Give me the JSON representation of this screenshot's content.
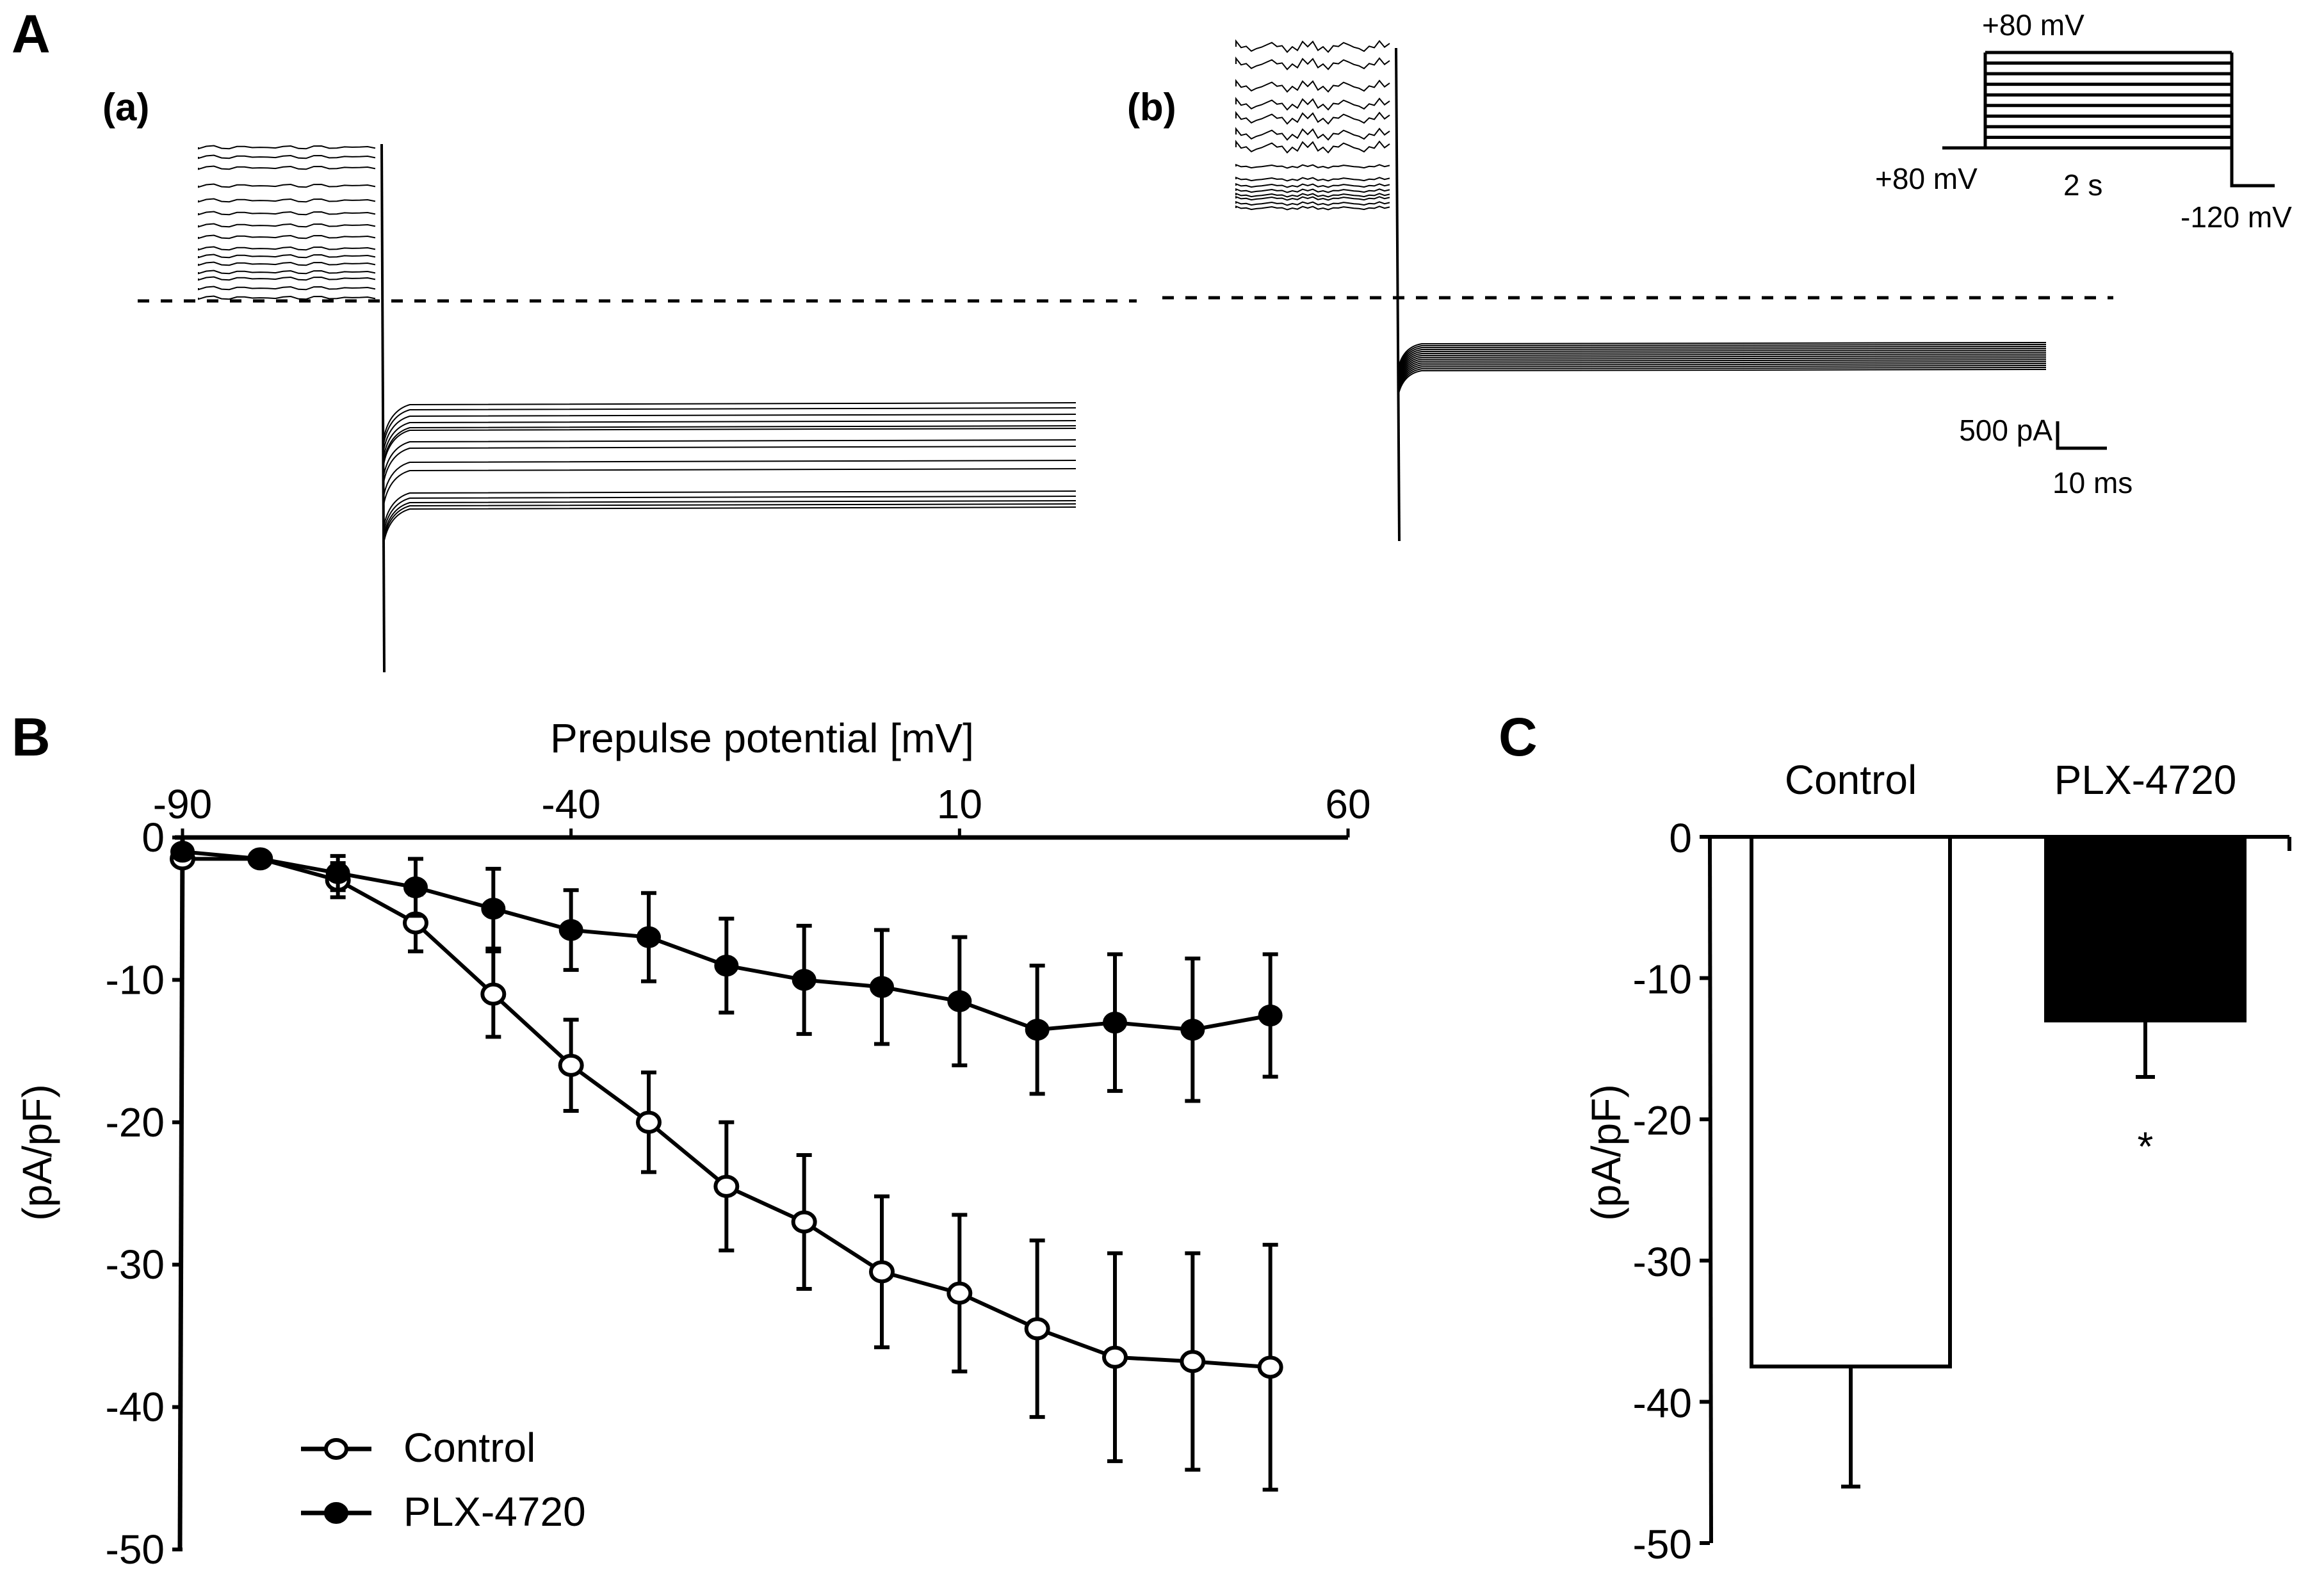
{
  "figure": {
    "panel_labels": [
      "A",
      "B",
      "C"
    ],
    "panel_a": {
      "sub_labels": [
        "(a)",
        "(b)"
      ],
      "protocol": {
        "top_label": "+80 mV",
        "hold_label": "+80 mV",
        "duration_label": "2 s",
        "end_label": "-120 mV",
        "steps": 9
      },
      "scale_bar": {
        "current": "500 pA",
        "time": "10 ms"
      },
      "traces_a_count": 15,
      "traces_b_count": 15
    }
  },
  "chart_data": [
    {
      "id": "B",
      "type": "line",
      "title": "",
      "xlabel": "Prepulse potential [mV]",
      "ylabel": "(pA/pF)",
      "xlim": [
        -90,
        60
      ],
      "ylim": [
        -50,
        0
      ],
      "x_ticks": [
        "-90",
        "-40",
        "10",
        "60"
      ],
      "x_tick_values": [
        -90,
        -40,
        10,
        60
      ],
      "y_ticks": [
        "0",
        "-10",
        "-20",
        "-30",
        "-40",
        "-50"
      ],
      "y_tick_values": [
        0,
        -10,
        -20,
        -30,
        -40,
        -50
      ],
      "x_axis_position": "top",
      "legend_position": "bottom-left",
      "grid": false,
      "x": [
        -90,
        -80,
        -70,
        -60,
        -50,
        -40,
        -30,
        -20,
        -10,
        0,
        10,
        20,
        30,
        40,
        50
      ],
      "series": [
        {
          "name": "Control",
          "marker": "open-circle",
          "values": [
            -1.5,
            -1.5,
            -3,
            -6,
            -11,
            -16,
            -20,
            -24.5,
            -27,
            -30.5,
            -32,
            -34.5,
            -36.5,
            -36.8,
            -37.2
          ],
          "errors": [
            0.4,
            0.5,
            1.2,
            2,
            3,
            3.2,
            3.5,
            4.5,
            4.7,
            5.3,
            5.5,
            6.2,
            7.3,
            7.6,
            8.6
          ]
        },
        {
          "name": "PLX-4720",
          "marker": "filled-circle",
          "values": [
            -1,
            -1.5,
            -2.5,
            -3.5,
            -5,
            -6.5,
            -7,
            -9,
            -10,
            -10.5,
            -11.5,
            -13.5,
            -13,
            -13.5,
            -12.5
          ],
          "errors": [
            0.3,
            0.5,
            1.2,
            2,
            2.8,
            2.8,
            3.1,
            3.3,
            3.8,
            4,
            4.5,
            4.5,
            4.8,
            5,
            4.3
          ]
        }
      ]
    },
    {
      "id": "C",
      "type": "bar",
      "title": "",
      "xlabel": "",
      "ylabel": "(pA/pF)",
      "categories": [
        "Control",
        "PLX-4720"
      ],
      "values": [
        -37.5,
        -13
      ],
      "errors": [
        8.5,
        4
      ],
      "colors": [
        "#ffffff",
        "#000000"
      ],
      "ylim": [
        -50,
        0
      ],
      "y_ticks": [
        "0",
        "-10",
        "-20",
        "-30",
        "-40",
        "-50"
      ],
      "y_tick_values": [
        0,
        -10,
        -20,
        -30,
        -40,
        -50
      ],
      "annotations": [
        {
          "category": "PLX-4720",
          "text": "*"
        }
      ]
    }
  ]
}
